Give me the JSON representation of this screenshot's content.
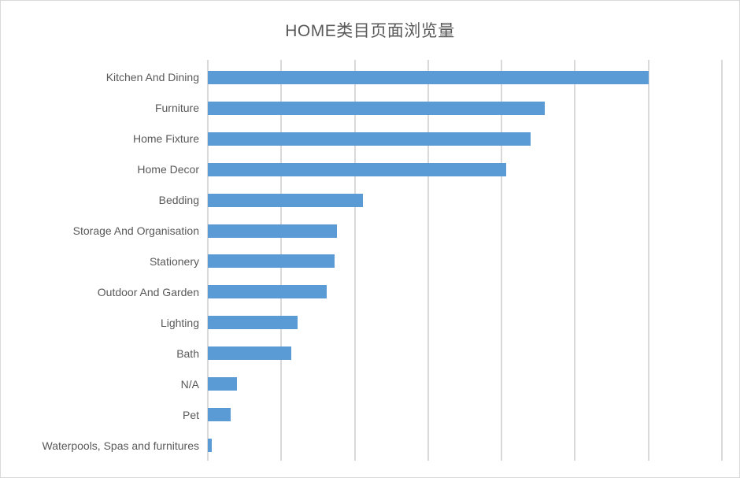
{
  "chart_data": {
    "type": "bar",
    "orientation": "horizontal",
    "title": "HOME类目页面浏览量",
    "categories": [
      "Kitchen And Dining",
      "Furniture",
      "Home Fixture",
      "Home Decor",
      "Bedding",
      "Storage And Organisation",
      "Stationery",
      "Outdoor And Garden",
      "Lighting",
      "Bath",
      "N/A",
      "Pet",
      "Waterpools, Spas and furnitures"
    ],
    "values": [
      6.0,
      4.59,
      4.4,
      4.06,
      2.11,
      1.76,
      1.73,
      1.62,
      1.22,
      1.14,
      0.4,
      0.31,
      0.05
    ],
    "value_note": "relative units; gridline interval = 1; no numeric tick labels shown in chart",
    "xlabel": "",
    "ylabel": "",
    "xlim": [
      0,
      7
    ],
    "gridline_count": 8,
    "grid": "vertical gridlines only",
    "legend": "none",
    "bar_color": "#5B9BD5",
    "gridline_color": "#D9D9D9",
    "border_color": "#D9D9D9",
    "title_color": "#595959",
    "label_color": "#595959",
    "background_color": "#FFFFFF"
  }
}
